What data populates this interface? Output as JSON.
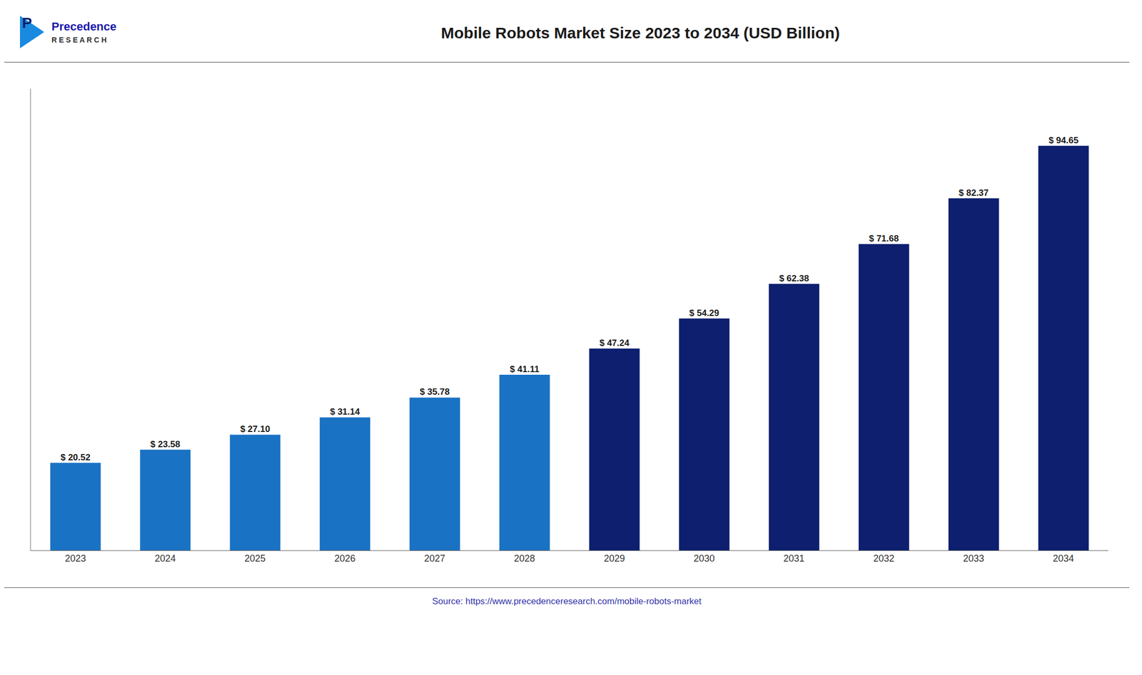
{
  "chart_data": {
    "type": "bar",
    "title": "Mobile Robots Market Size 2023 to 2034 (USD Billion)",
    "categories": [
      "2023",
      "2024",
      "2025",
      "2026",
      "2027",
      "2028",
      "2029",
      "2030",
      "2031",
      "2032",
      "2033",
      "2034"
    ],
    "values": [
      20.52,
      23.58,
      27.1,
      31.14,
      35.78,
      41.11,
      47.24,
      54.29,
      62.38,
      71.68,
      82.37,
      94.65
    ],
    "value_labels": [
      "$ 20.52",
      "$ 23.58",
      "$ 27.10",
      "$ 31.14",
      "$ 35.78",
      "$ 41.11",
      "$ 47.24",
      "$ 54.29",
      "$ 62.38",
      "$ 71.68",
      "$ 82.37",
      "$ 94.65"
    ],
    "data_labels": true,
    "colors": [
      "#1a72c4",
      "#1a72c4",
      "#1a72c4",
      "#1a72c4",
      "#1a72c4",
      "#1a72c4",
      "#0d1f6e",
      "#0d1f6e",
      "#0d1f6e",
      "#0d1f6e",
      "#0d1f6e",
      "#0d1f6e"
    ],
    "ylim": [
      0,
      108
    ],
    "tick_labels": "x",
    "grid": false,
    "annotations": [
      "Precedence",
      "R E S E A R C H",
      "P",
      "Source: https://www.precedenceresearch.com/mobile-robots-market"
    ]
  }
}
